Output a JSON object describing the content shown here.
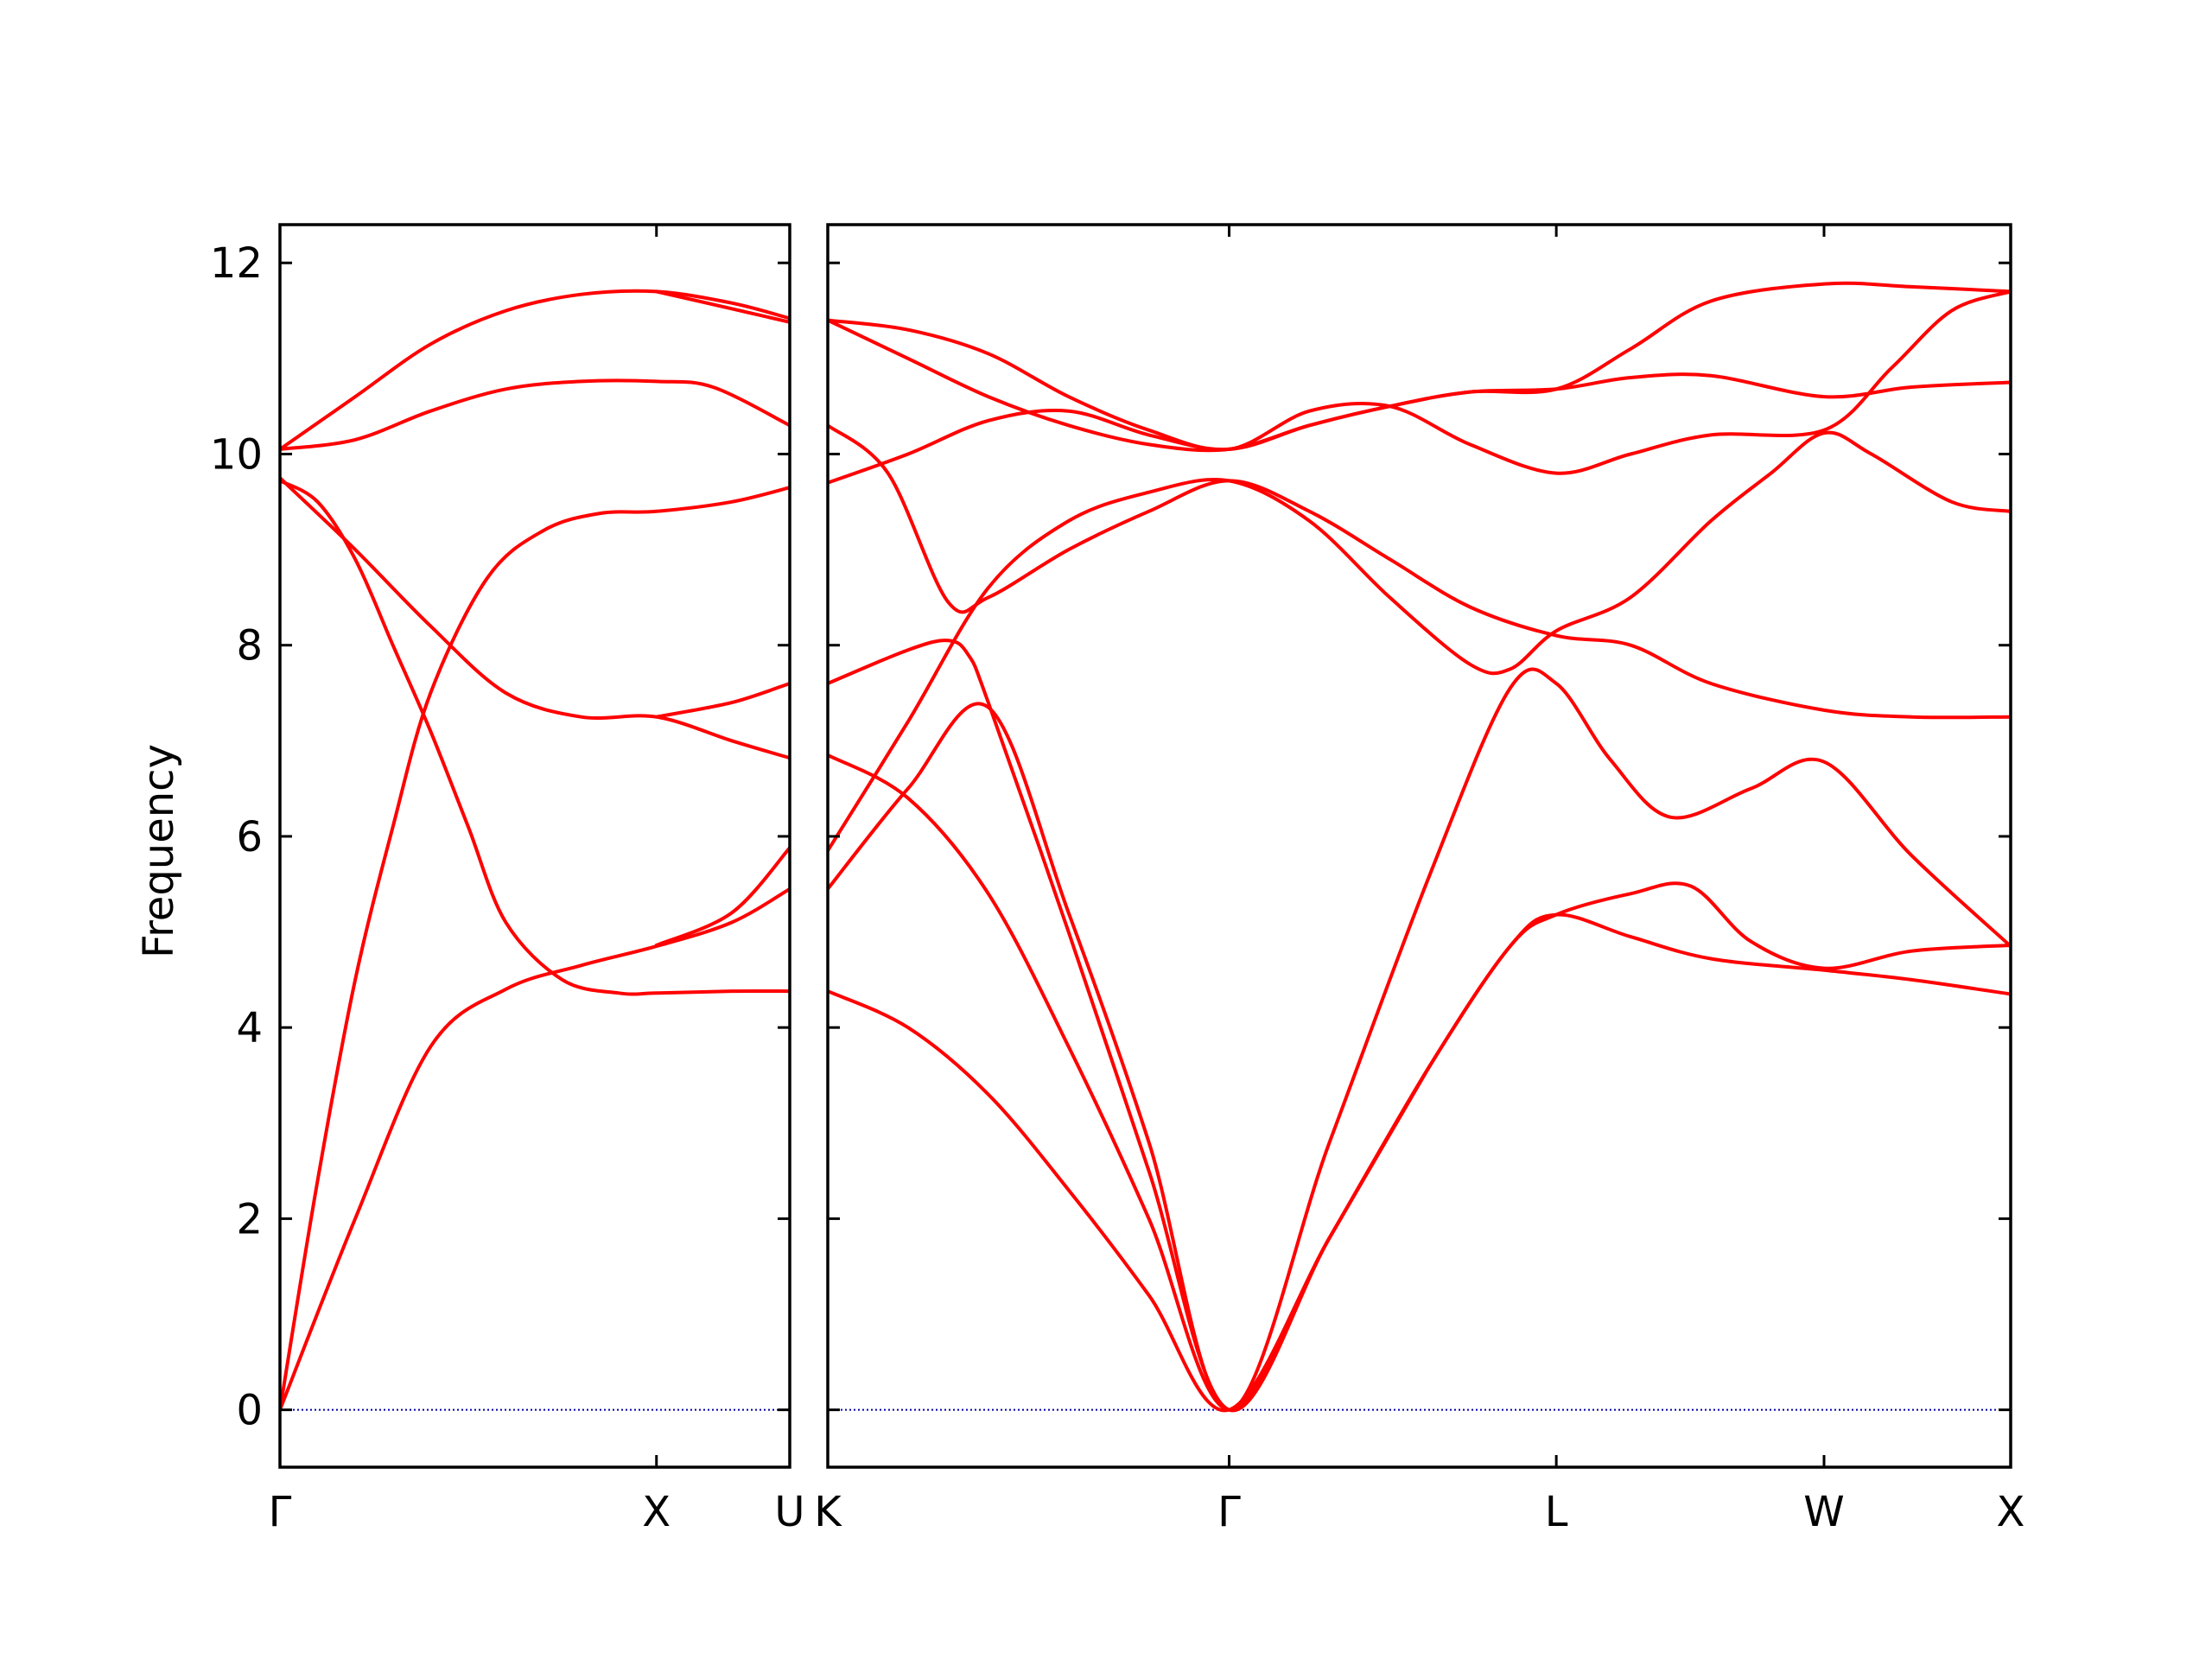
{
  "chart_data": {
    "type": "line",
    "ylabel": "Frequency",
    "ylim": [
      -0.6,
      12.4
    ],
    "yticks": [
      0,
      2,
      4,
      6,
      8,
      10,
      12
    ],
    "colors": {
      "bands": "#ff0000",
      "zero_line": "#0000aa",
      "axes": "#000000"
    },
    "zero_line_style": "dotted",
    "grid": false,
    "panels": [
      {
        "xticks": [
          "Γ",
          "X",
          "U"
        ],
        "xlim": [
          0,
          1.354
        ],
        "tick_positions": [
          0,
          1.0,
          1.354
        ],
        "bands": [
          [
            [
              0,
              0
            ],
            [
              0.2,
              2.0
            ],
            [
              0.4,
              3.8
            ],
            [
              0.6,
              4.4
            ],
            [
              0.8,
              4.65
            ],
            [
              1.0,
              4.85
            ],
            [
              1.2,
              5.1
            ],
            [
              1.354,
              5.45
            ]
          ],
          [
            [
              0,
              0
            ],
            [
              0.1,
              2.4
            ],
            [
              0.2,
              4.5
            ],
            [
              0.3,
              6.1
            ],
            [
              0.4,
              7.5
            ],
            [
              0.55,
              8.7
            ],
            [
              0.7,
              9.2
            ],
            [
              0.85,
              9.38
            ],
            [
              1.0,
              9.4
            ],
            [
              1.2,
              9.5
            ],
            [
              1.354,
              9.65
            ]
          ],
          [
            [
              0,
              9.72
            ],
            [
              0.1,
              9.5
            ],
            [
              0.2,
              8.9
            ],
            [
              0.3,
              8.0
            ],
            [
              0.4,
              7.1
            ],
            [
              0.5,
              6.1
            ],
            [
              0.6,
              5.1
            ],
            [
              0.75,
              4.5
            ],
            [
              0.9,
              4.36
            ],
            [
              1.0,
              4.36
            ],
            [
              1.2,
              4.38
            ],
            [
              1.354,
              4.38
            ]
          ],
          [
            [
              0,
              9.75
            ],
            [
              0.2,
              9.0
            ],
            [
              0.4,
              8.2
            ],
            [
              0.6,
              7.5
            ],
            [
              0.8,
              7.25
            ],
            [
              1.0,
              7.25
            ],
            [
              1.2,
              7.0
            ],
            [
              1.354,
              6.82
            ]
          ],
          [
            [
              0,
              10.05
            ],
            [
              0.2,
              10.15
            ],
            [
              0.4,
              10.45
            ],
            [
              0.6,
              10.68
            ],
            [
              0.8,
              10.76
            ],
            [
              1.0,
              10.76
            ],
            [
              1.15,
              10.7
            ],
            [
              1.354,
              10.3
            ]
          ],
          [
            [
              0,
              10.05
            ],
            [
              0.2,
              10.6
            ],
            [
              0.4,
              11.15
            ],
            [
              0.6,
              11.5
            ],
            [
              0.8,
              11.67
            ],
            [
              1.0,
              11.7
            ],
            [
              1.2,
              11.58
            ],
            [
              1.354,
              11.42
            ]
          ],
          [
            [
              1.0,
              4.86
            ],
            [
              1.2,
              5.2
            ],
            [
              1.354,
              5.88
            ]
          ],
          [
            [
              1.0,
              7.25
            ],
            [
              1.2,
              7.4
            ],
            [
              1.354,
              7.6
            ]
          ],
          [
            [
              1.0,
              11.7
            ],
            [
              1.2,
              11.52
            ],
            [
              1.354,
              11.38
            ]
          ]
        ]
      },
      {
        "xticks": [
          "K",
          "Γ",
          "L",
          "W",
          "X"
        ],
        "xlim": [
          0,
          2.947
        ],
        "tick_positions": [
          0,
          1.0,
          1.815,
          2.482,
          2.947
        ],
        "bands": [
          [
            [
              0,
              4.38
            ],
            [
              0.2,
              4.0
            ],
            [
              0.4,
              3.3
            ],
            [
              0.6,
              2.3
            ],
            [
              0.8,
              1.2
            ],
            [
              1.0,
              0
            ],
            [
              1.25,
              1.8
            ],
            [
              1.5,
              3.6
            ],
            [
              1.7,
              4.85
            ],
            [
              1.815,
              5.18
            ],
            [
              2.0,
              4.95
            ],
            [
              2.2,
              4.72
            ],
            [
              2.482,
              4.6
            ],
            [
              2.7,
              4.5
            ],
            [
              2.947,
              4.35
            ]
          ],
          [
            [
              0,
              5.45
            ],
            [
              0.2,
              6.5
            ],
            [
              0.4,
              7.35
            ],
            [
              0.6,
              5.2
            ],
            [
              0.8,
              2.8
            ],
            [
              1.0,
              0
            ],
            [
              1.25,
              2.8
            ],
            [
              1.5,
              5.6
            ],
            [
              1.7,
              7.55
            ],
            [
              1.815,
              7.6
            ],
            [
              1.95,
              6.8
            ],
            [
              2.1,
              6.2
            ],
            [
              2.3,
              6.5
            ],
            [
              2.482,
              6.78
            ],
            [
              2.7,
              5.8
            ],
            [
              2.947,
              4.85
            ]
          ],
          [
            [
              0,
              5.85
            ],
            [
              0.2,
              7.2
            ],
            [
              0.4,
              8.6
            ],
            [
              0.6,
              9.3
            ],
            [
              0.8,
              9.6
            ],
            [
              1.0,
              9.72
            ],
            [
              1.2,
              9.3
            ],
            [
              1.4,
              8.5
            ],
            [
              1.6,
              7.8
            ],
            [
              1.7,
              7.75
            ],
            [
              1.815,
              8.15
            ],
            [
              2.0,
              8.5
            ],
            [
              2.2,
              9.3
            ],
            [
              2.35,
              9.8
            ],
            [
              2.482,
              10.22
            ],
            [
              2.6,
              10.0
            ],
            [
              2.8,
              9.5
            ],
            [
              2.947,
              9.4
            ]
          ],
          [
            [
              0,
              6.85
            ],
            [
              0.2,
              6.4
            ],
            [
              0.4,
              5.4
            ],
            [
              0.6,
              3.8
            ],
            [
              0.8,
              2.0
            ],
            [
              1.0,
              0
            ],
            [
              1.25,
              1.8
            ],
            [
              1.5,
              3.6
            ],
            [
              1.7,
              4.85
            ],
            [
              1.815,
              5.18
            ],
            [
              2.0,
              5.4
            ],
            [
              2.15,
              5.48
            ],
            [
              2.3,
              4.9
            ],
            [
              2.482,
              4.62
            ],
            [
              2.7,
              4.8
            ],
            [
              2.947,
              4.86
            ]
          ],
          [
            [
              0,
              7.6
            ],
            [
              0.2,
              7.95
            ],
            [
              0.3,
              8.05
            ],
            [
              0.35,
              7.9
            ],
            [
              0.4,
              7.4
            ],
            [
              0.6,
              5.0
            ],
            [
              0.8,
              2.5
            ],
            [
              1.0,
              0
            ],
            [
              1.25,
              1.8
            ],
            [
              1.5,
              3.6
            ]
          ],
          [
            [
              0,
              9.7
            ],
            [
              0.2,
              10.0
            ],
            [
              0.4,
              10.35
            ],
            [
              0.6,
              10.45
            ],
            [
              0.8,
              10.2
            ],
            [
              1.0,
              10.05
            ],
            [
              1.2,
              10.3
            ],
            [
              1.4,
              10.5
            ],
            [
              1.6,
              10.65
            ],
            [
              1.815,
              10.68
            ],
            [
              2.0,
              10.8
            ],
            [
              2.2,
              10.82
            ],
            [
              2.482,
              10.6
            ],
            [
              2.7,
              10.7
            ],
            [
              2.947,
              10.75
            ]
          ],
          [
            [
              0,
              10.3
            ],
            [
              0.15,
              9.8
            ],
            [
              0.3,
              8.45
            ],
            [
              0.4,
              8.5
            ],
            [
              0.6,
              9.0
            ],
            [
              0.8,
              9.4
            ],
            [
              1.0,
              9.72
            ],
            [
              1.2,
              9.4
            ],
            [
              1.4,
              8.9
            ],
            [
              1.6,
              8.4
            ],
            [
              1.815,
              8.1
            ],
            [
              2.0,
              8.0
            ],
            [
              2.2,
              7.6
            ],
            [
              2.482,
              7.32
            ],
            [
              2.7,
              7.25
            ],
            [
              2.947,
              7.25
            ]
          ],
          [
            [
              0,
              11.4
            ],
            [
              0.2,
              11.3
            ],
            [
              0.4,
              11.05
            ],
            [
              0.6,
              10.6
            ],
            [
              0.8,
              10.25
            ],
            [
              1.0,
              10.05
            ],
            [
              1.2,
              10.45
            ],
            [
              1.4,
              10.5
            ],
            [
              1.6,
              10.1
            ],
            [
              1.815,
              9.8
            ],
            [
              2.0,
              10.0
            ],
            [
              2.2,
              10.2
            ],
            [
              2.482,
              10.25
            ],
            [
              2.65,
              10.9
            ],
            [
              2.8,
              11.5
            ],
            [
              2.947,
              11.7
            ]
          ],
          [
            [
              0,
              11.4
            ],
            [
              0.2,
              11.0
            ],
            [
              0.4,
              10.6
            ],
            [
              0.6,
              10.3
            ],
            [
              0.8,
              10.1
            ],
            [
              1.0,
              10.05
            ],
            [
              1.2,
              10.3
            ],
            [
              1.4,
              10.5
            ],
            [
              1.6,
              10.65
            ],
            [
              1.815,
              10.68
            ],
            [
              2.0,
              11.1
            ],
            [
              2.2,
              11.6
            ],
            [
              2.482,
              11.78
            ],
            [
              2.7,
              11.75
            ],
            [
              2.947,
              11.7
            ]
          ]
        ]
      }
    ]
  }
}
